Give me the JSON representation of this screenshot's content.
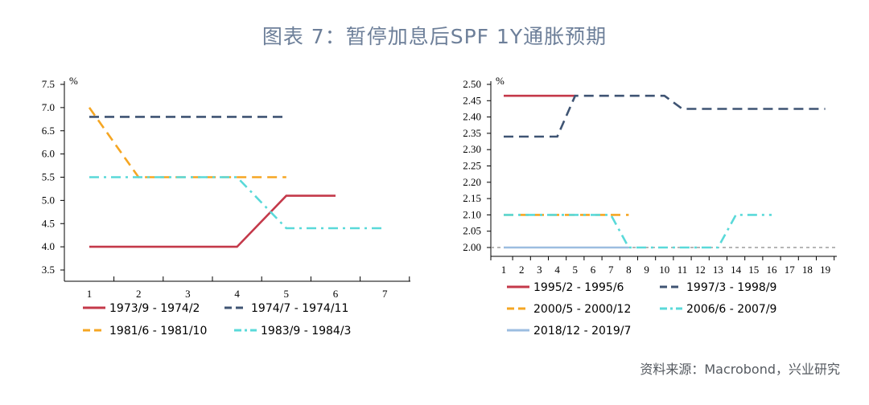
{
  "figure": {
    "title": "图表 7：暂停加息后SPF 1Y通胀预期",
    "source": "资料来源：Macrobond，兴业研究"
  },
  "chart_data": [
    {
      "type": "line",
      "ylabel": "%",
      "ylim": [
        3.5,
        7.5
      ],
      "yticks": [
        "3.5",
        "4.0",
        "4.5",
        "5.0",
        "5.5",
        "6.0",
        "6.5",
        "7.0",
        "7.5"
      ],
      "x": [
        1,
        2,
        3,
        4,
        5,
        6,
        7
      ],
      "xticks": [
        "1",
        "2",
        "3",
        "4",
        "5",
        "6",
        "7"
      ],
      "legend_position": "bottom",
      "series": [
        {
          "name": "1973/9 - 1974/2",
          "color": "#c4394a",
          "dash": "solid",
          "points": [
            [
              1,
              4.0
            ],
            [
              2,
              4.0
            ],
            [
              3,
              4.0
            ],
            [
              4,
              4.0
            ],
            [
              5,
              5.1
            ],
            [
              6,
              5.1
            ]
          ]
        },
        {
          "name": "1974/7 - 1974/11",
          "color": "#3f5473",
          "dash": "dash",
          "points": [
            [
              1,
              6.8
            ],
            [
              2,
              6.8
            ],
            [
              3,
              6.8
            ],
            [
              4,
              6.8
            ],
            [
              5,
              6.8
            ]
          ]
        },
        {
          "name": "1981/6 - 1981/10",
          "color": "#f5a623",
          "dash": "dash",
          "points": [
            [
              1,
              7.0
            ],
            [
              2,
              5.5
            ],
            [
              3,
              5.5
            ],
            [
              4,
              5.5
            ],
            [
              5,
              5.5
            ]
          ]
        },
        {
          "name": "1983/9 - 1984/3",
          "color": "#5ad9d9",
          "dash": "dashdot",
          "points": [
            [
              1,
              5.5
            ],
            [
              2,
              5.5
            ],
            [
              3,
              5.5
            ],
            [
              4,
              5.5
            ],
            [
              5,
              4.4
            ],
            [
              6,
              4.4
            ],
            [
              7,
              4.4
            ]
          ]
        }
      ]
    },
    {
      "type": "line",
      "ylabel": "%",
      "ylim": [
        2.0,
        2.5
      ],
      "yticks": [
        "2.00",
        "2.05",
        "2.10",
        "2.15",
        "2.20",
        "2.25",
        "2.30",
        "2.35",
        "2.40",
        "2.45",
        "2.50"
      ],
      "x": [
        1,
        2,
        3,
        4,
        5,
        6,
        7,
        8,
        9,
        10,
        11,
        12,
        13,
        14,
        15,
        16,
        17,
        18,
        19
      ],
      "xticks": [
        "1",
        "2",
        "3",
        "4",
        "5",
        "6",
        "7",
        "8",
        "9",
        "10",
        "11",
        "12",
        "13",
        "14",
        "15",
        "16",
        "17",
        "18",
        "19"
      ],
      "reference_line": 2.0,
      "legend_position": "bottom",
      "series": [
        {
          "name": "1995/2 - 1995/6",
          "color": "#c4394a",
          "dash": "solid",
          "points": [
            [
              1,
              2.465
            ],
            [
              2,
              2.465
            ],
            [
              3,
              2.465
            ],
            [
              4,
              2.465
            ],
            [
              5,
              2.465
            ]
          ]
        },
        {
          "name": "1997/3 - 1998/9",
          "color": "#3f5473",
          "dash": "dash",
          "points": [
            [
              1,
              2.34
            ],
            [
              2,
              2.34
            ],
            [
              3,
              2.34
            ],
            [
              4,
              2.34
            ],
            [
              5,
              2.465
            ],
            [
              6,
              2.465
            ],
            [
              7,
              2.465
            ],
            [
              8,
              2.465
            ],
            [
              9,
              2.465
            ],
            [
              10,
              2.465
            ],
            [
              11,
              2.425
            ],
            [
              12,
              2.425
            ],
            [
              13,
              2.425
            ],
            [
              14,
              2.425
            ],
            [
              15,
              2.425
            ],
            [
              16,
              2.425
            ],
            [
              17,
              2.425
            ],
            [
              18,
              2.425
            ],
            [
              19,
              2.425
            ]
          ]
        },
        {
          "name": "2000/5 - 2000/12",
          "color": "#f5a623",
          "dash": "dash",
          "points": [
            [
              1,
              2.1
            ],
            [
              2,
              2.1
            ],
            [
              3,
              2.1
            ],
            [
              4,
              2.1
            ],
            [
              5,
              2.1
            ],
            [
              6,
              2.1
            ],
            [
              7,
              2.1
            ],
            [
              8,
              2.1
            ]
          ]
        },
        {
          "name": "2006/6 - 2007/9",
          "color": "#5ad9d9",
          "dash": "dashdot",
          "points": [
            [
              1,
              2.1
            ],
            [
              2,
              2.1
            ],
            [
              3,
              2.1
            ],
            [
              4,
              2.1
            ],
            [
              5,
              2.1
            ],
            [
              6,
              2.1
            ],
            [
              7,
              2.1
            ],
            [
              8,
              2.0
            ],
            [
              9,
              2.0
            ],
            [
              10,
              2.0
            ],
            [
              11,
              2.0
            ],
            [
              12,
              2.0
            ],
            [
              13,
              2.0
            ],
            [
              14,
              2.1
            ],
            [
              15,
              2.1
            ],
            [
              16,
              2.1
            ]
          ]
        },
        {
          "name": "2018/12 - 2019/7",
          "color": "#9cbde0",
          "dash": "solid",
          "points": [
            [
              1,
              2.0
            ],
            [
              2,
              2.0
            ],
            [
              3,
              2.0
            ],
            [
              4,
              2.0
            ],
            [
              5,
              2.0
            ],
            [
              6,
              2.0
            ],
            [
              7,
              2.0
            ],
            [
              8,
              2.0
            ]
          ]
        }
      ]
    }
  ]
}
